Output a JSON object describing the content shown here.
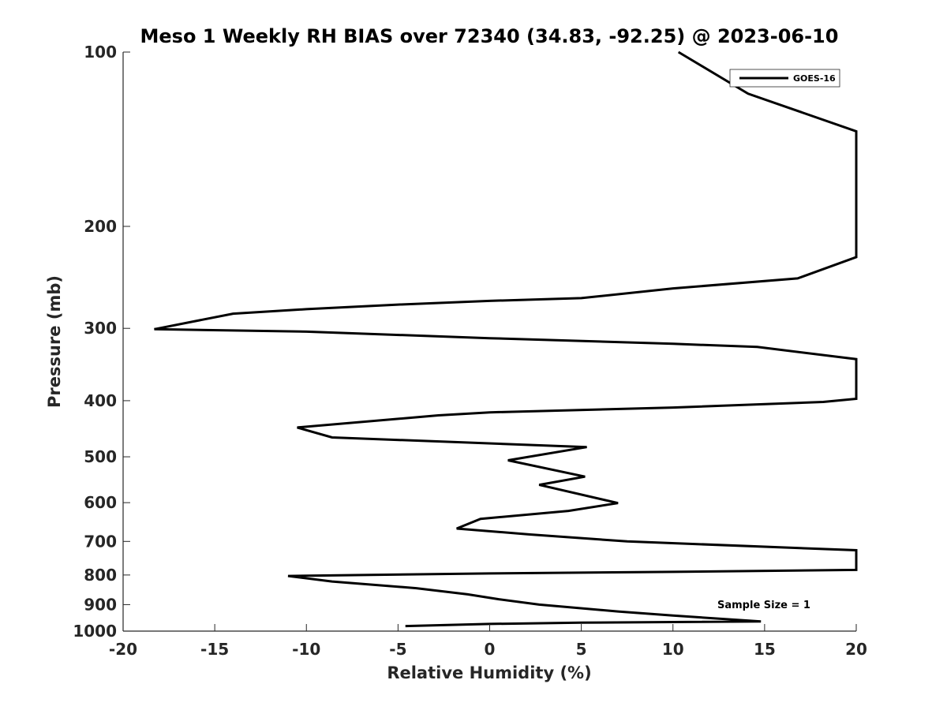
{
  "chart_data": {
    "type": "line",
    "title": "Meso 1 Weekly RH BIAS over 72340 (34.83, -92.25) @ 2023-06-10",
    "xlabel": "Relative Humidity (%)",
    "ylabel": "Pressure (mb)",
    "xlim": [
      -20,
      20
    ],
    "ylim": [
      100,
      1000
    ],
    "yscale": "log",
    "yreversed": true,
    "xticks": [
      -20,
      -15,
      -10,
      -5,
      0,
      5,
      10,
      15,
      20
    ],
    "xtick_labels": [
      "-20",
      "-15",
      "-10",
      "-5",
      "0",
      "5",
      "10",
      "15",
      "20"
    ],
    "yticks": [
      100,
      200,
      300,
      400,
      500,
      600,
      700,
      800,
      900,
      1000
    ],
    "ytick_labels": [
      "100",
      "200",
      "300",
      "400",
      "500",
      "600",
      "700",
      "800",
      "900",
      "1000"
    ],
    "grid": false,
    "legend_position": "top-right",
    "annotation": "Sample Size = 1",
    "series": [
      {
        "name": "GOES-16",
        "color": "#000000",
        "points": [
          [
            10.3,
            100
          ],
          [
            14.1,
            118
          ],
          [
            20.8,
            137
          ],
          [
            20.8,
            226
          ],
          [
            16.8,
            246
          ],
          [
            10.0,
            256
          ],
          [
            5.0,
            266
          ],
          [
            0.0,
            269
          ],
          [
            -5.0,
            273
          ],
          [
            -10.0,
            278
          ],
          [
            -14.0,
            283
          ],
          [
            -18.3,
            301
          ],
          [
            -10.0,
            304
          ],
          [
            0.0,
            312
          ],
          [
            10.0,
            319
          ],
          [
            14.6,
            323
          ],
          [
            20.8,
            339
          ],
          [
            20.8,
            397
          ],
          [
            18.2,
            402
          ],
          [
            10.0,
            411
          ],
          [
            0.0,
            419
          ],
          [
            -2.8,
            424
          ],
          [
            -10.5,
            445
          ],
          [
            -8.6,
            463
          ],
          [
            5.3,
            481
          ],
          [
            1.0,
            507
          ],
          [
            5.2,
            541
          ],
          [
            2.7,
            559
          ],
          [
            7.0,
            601
          ],
          [
            4.3,
            620
          ],
          [
            -0.5,
            640
          ],
          [
            -1.8,
            665
          ],
          [
            2.2,
            681
          ],
          [
            7.5,
            700
          ],
          [
            20.8,
            725
          ],
          [
            20.8,
            784
          ],
          [
            10.0,
            790
          ],
          [
            0.0,
            795
          ],
          [
            -11.0,
            803
          ],
          [
            -8.6,
            821
          ],
          [
            -4.0,
            843
          ],
          [
            -1.2,
            864
          ],
          [
            0.5,
            881
          ],
          [
            2.7,
            900
          ],
          [
            7.0,
            925
          ],
          [
            10.0,
            940
          ],
          [
            14.8,
            962
          ],
          [
            5.0,
            967
          ],
          [
            0.0,
            972
          ],
          [
            -4.6,
            980
          ]
        ]
      }
    ]
  }
}
